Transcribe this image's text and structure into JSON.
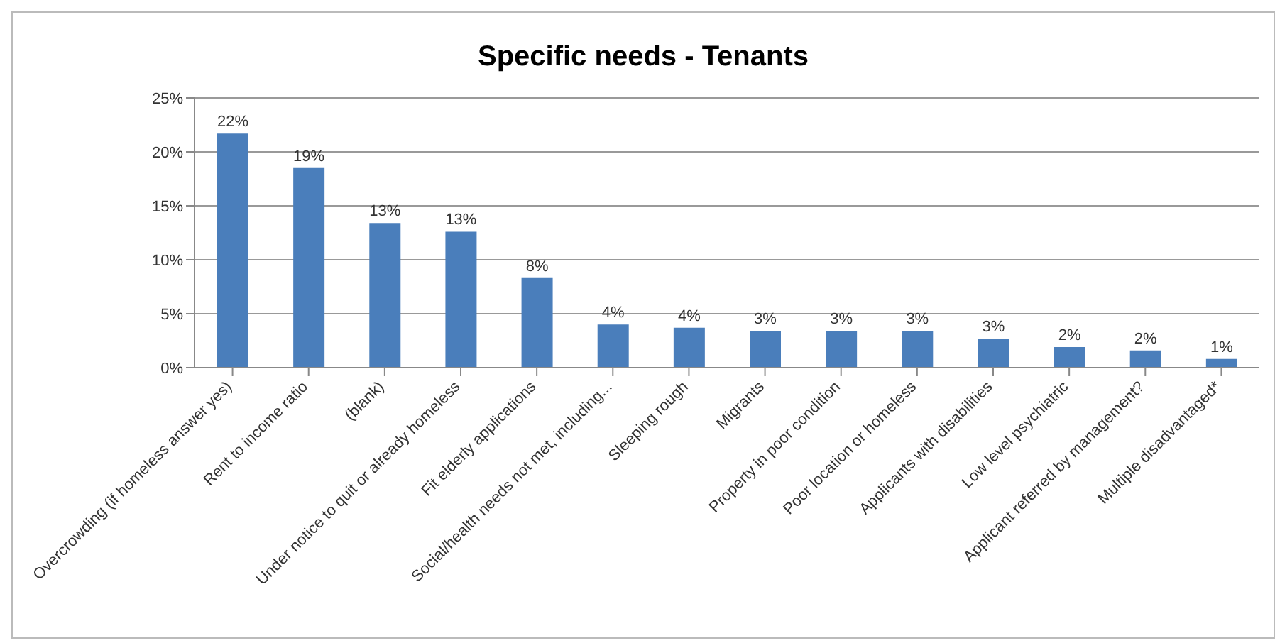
{
  "chart_data": {
    "type": "bar",
    "title": "Specific needs - Tenants",
    "categories": [
      "Overcrowding (if homeless answer yes)",
      "Rent to income ratio",
      "(blank)",
      "Under notice to quit or already homeless",
      "Fit elderly applications",
      "Social/health needs not met, including...",
      "Sleeping rough",
      "Migrants",
      "Property in poor condition",
      "Poor location or homeless",
      "Applicants with disabilities",
      "Low level psychiatric",
      "Applicant referred by management?",
      "Multiple disadvantaged*"
    ],
    "values": [
      21.7,
      18.5,
      13.4,
      12.6,
      8.3,
      4.0,
      3.7,
      3.4,
      3.4,
      3.4,
      2.7,
      1.9,
      1.6,
      0.8
    ],
    "value_labels": [
      "22%",
      "19%",
      "13%",
      "13%",
      "8%",
      "4%",
      "4%",
      "3%",
      "3%",
      "3%",
      "3%",
      "2%",
      "2%",
      "1%"
    ],
    "color": "#4a7ebb",
    "ylim": [
      0,
      25
    ],
    "yticks": [
      {
        "value": 0,
        "label": "0%"
      },
      {
        "value": 5,
        "label": "5%"
      },
      {
        "value": 10,
        "label": "10%"
      },
      {
        "value": 15,
        "label": "15%"
      },
      {
        "value": 20,
        "label": "20%"
      },
      {
        "value": 25,
        "label": "25%"
      }
    ],
    "grid": "y",
    "legend": false
  }
}
